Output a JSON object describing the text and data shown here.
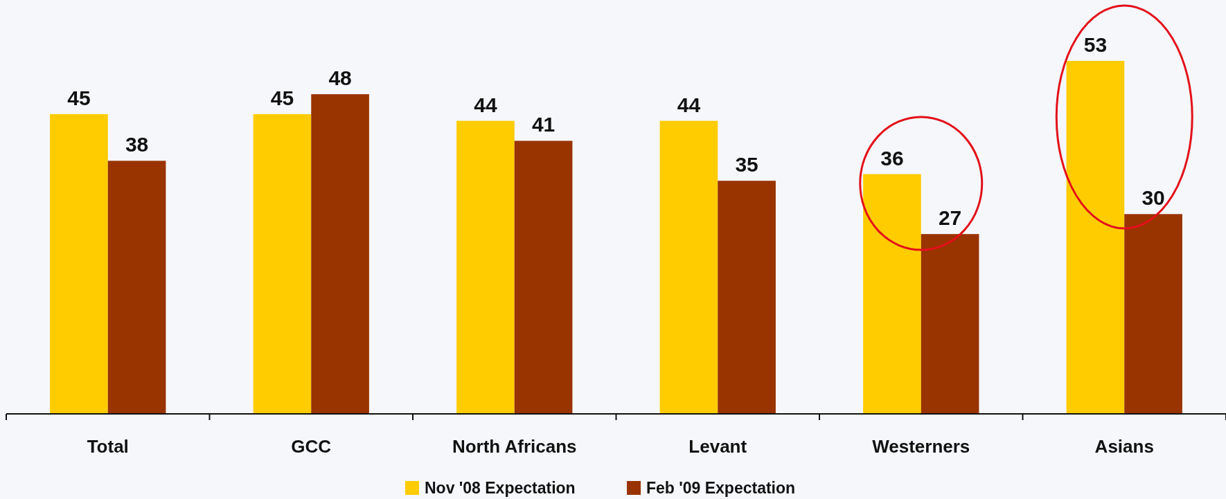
{
  "chart_data": {
    "type": "bar",
    "categories": [
      "Total",
      "GCC",
      "North Africans",
      "Levant",
      "Westerners",
      "Asians"
    ],
    "series": [
      {
        "name": "Nov '08 Expectation",
        "color": "#ffcc00",
        "values": [
          45,
          45,
          44,
          44,
          36,
          53
        ]
      },
      {
        "name": "Feb '09 Expectation",
        "color": "#993300",
        "values": [
          38,
          48,
          41,
          35,
          27,
          30
        ]
      }
    ],
    "data_labels": true,
    "legend": "bottom"
  }
}
